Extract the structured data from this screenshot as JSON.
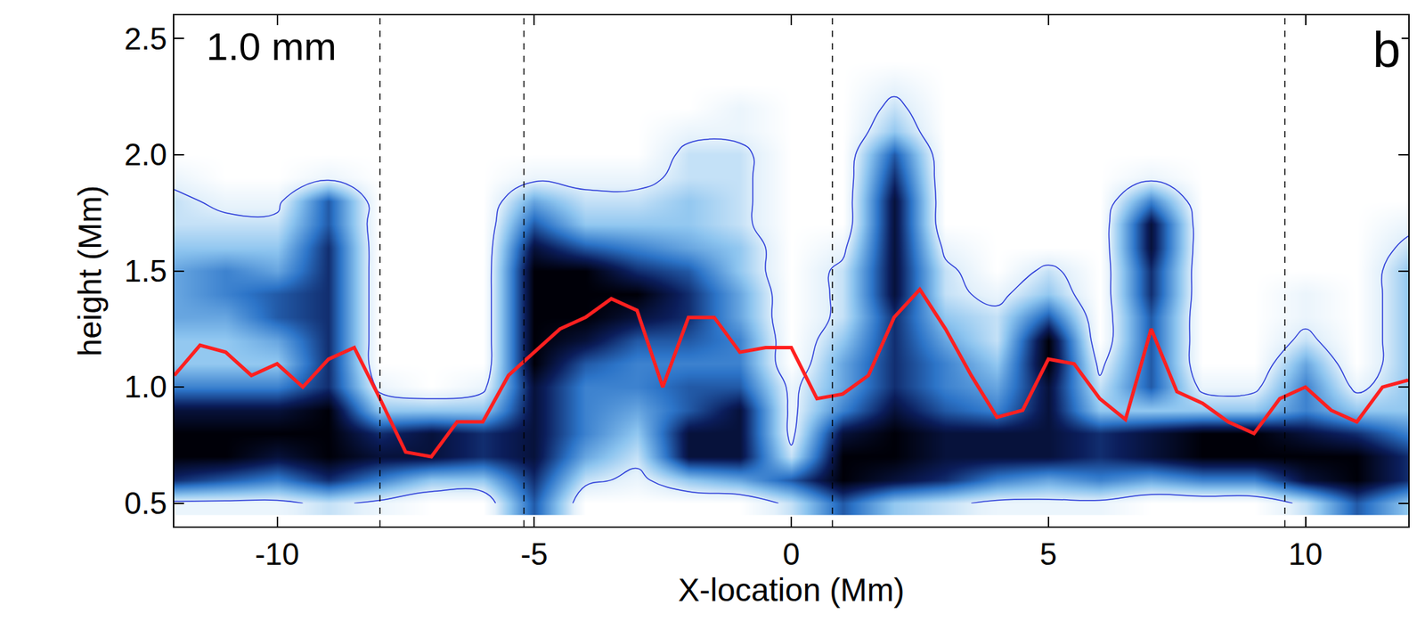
{
  "chart_data": {
    "type": "heatmap",
    "annotations": [
      "1.0 mm"
    ],
    "panel_label": "b",
    "x_label": "X-location (Mm)",
    "y_label": "height (Mm)",
    "xlim": [
      -12,
      12
    ],
    "ylim": [
      0.4,
      2.6
    ],
    "xticks": [
      -10,
      -5,
      0,
      5,
      10
    ],
    "yticks": [
      {
        "value": 0.5,
        "label": "0.5"
      },
      {
        "value": 1.0,
        "label": "1.0"
      },
      {
        "value": 1.5,
        "label": "1.5"
      },
      {
        "value": 2.0,
        "label": "2.0"
      },
      {
        "value": 2.5,
        "label": "2.5"
      }
    ],
    "grid": false,
    "cells": {
      "x": [
        -12,
        -11,
        -10,
        -9,
        -8,
        -7,
        -6,
        -5,
        -4,
        -3,
        -2,
        -1,
        0,
        1,
        2,
        3,
        4,
        5,
        6,
        7,
        8,
        9,
        10,
        11,
        12
      ],
      "y": [
        0.5,
        0.6,
        0.7,
        0.8,
        0.9,
        1.0,
        1.1,
        1.2,
        1.3,
        1.4,
        1.5,
        1.6,
        1.7,
        1.8,
        1.9,
        2.0,
        2.1,
        2.2,
        2.3,
        2.4,
        2.5
      ],
      "values": [
        [
          1,
          1,
          1,
          2,
          1,
          0,
          0,
          6,
          0,
          0,
          0,
          0,
          2,
          6,
          3,
          2,
          1,
          1,
          1,
          0,
          0,
          0,
          2,
          6,
          3
        ],
        [
          7,
          6,
          5,
          7,
          5,
          3,
          3,
          7,
          2,
          1,
          3,
          4,
          6,
          9,
          8,
          7,
          5,
          4,
          5,
          4,
          5,
          5,
          8,
          9,
          7
        ],
        [
          9,
          9,
          8,
          9,
          8,
          8,
          7,
          8,
          4,
          2,
          8,
          8,
          2,
          9,
          9,
          8,
          8,
          8,
          7,
          8,
          9,
          9,
          9,
          9,
          7
        ],
        [
          9,
          9,
          9,
          9,
          7,
          8,
          7,
          8,
          5,
          3,
          8,
          8,
          1,
          8,
          9,
          8,
          8,
          8,
          7,
          8,
          9,
          9,
          8,
          7,
          5
        ],
        [
          8,
          8,
          8,
          9,
          3,
          3,
          3,
          8,
          5,
          4,
          6,
          8,
          1,
          5,
          8,
          6,
          5,
          8,
          3,
          3,
          3,
          3,
          5,
          3,
          3
        ],
        [
          5,
          5,
          5,
          7,
          1,
          0,
          1,
          8,
          5,
          5,
          6,
          6,
          1,
          4,
          7,
          5,
          4,
          8,
          2,
          6,
          1,
          1,
          5,
          1,
          3
        ],
        [
          3,
          3,
          3,
          7,
          0,
          0,
          0,
          9,
          6,
          5,
          5,
          5,
          0,
          4,
          7,
          5,
          3,
          9,
          1,
          6,
          0,
          0,
          4,
          0,
          3
        ],
        [
          3,
          3,
          4,
          7,
          0,
          0,
          0,
          9,
          8,
          6,
          6,
          5,
          0,
          3,
          7,
          4,
          2,
          9,
          0,
          6,
          0,
          0,
          2,
          0,
          3
        ],
        [
          4,
          4,
          6,
          7,
          0,
          0,
          0,
          9,
          9,
          8,
          7,
          4,
          0,
          2,
          7,
          3,
          2,
          6,
          0,
          6,
          0,
          0,
          1,
          0,
          3
        ],
        [
          4,
          5,
          6,
          7,
          0,
          0,
          0,
          9,
          9,
          9,
          7,
          4,
          0,
          2,
          8,
          2,
          1,
          3,
          0,
          7,
          0,
          0,
          1,
          0,
          3
        ],
        [
          4,
          5,
          4,
          7,
          0,
          0,
          0,
          9,
          9,
          7,
          6,
          3,
          0,
          2,
          8,
          2,
          0,
          2,
          0,
          7,
          0,
          0,
          0,
          0,
          3
        ],
        [
          3,
          3,
          3,
          7,
          0,
          0,
          0,
          8,
          6,
          5,
          4,
          3,
          0,
          1,
          8,
          1,
          0,
          0,
          0,
          8,
          0,
          0,
          0,
          0,
          2
        ],
        [
          2,
          2,
          2,
          6,
          0,
          0,
          0,
          6,
          3,
          3,
          3,
          2,
          0,
          0,
          8,
          0,
          0,
          0,
          0,
          8,
          0,
          0,
          0,
          0,
          1
        ],
        [
          2,
          1,
          1,
          6,
          0,
          0,
          0,
          4,
          2,
          2,
          3,
          2,
          0,
          0,
          8,
          0,
          0,
          0,
          0,
          5,
          0,
          0,
          0,
          0,
          0
        ],
        [
          1,
          0,
          0,
          1,
          0,
          0,
          0,
          1,
          1,
          1,
          2,
          2,
          0,
          0,
          7,
          0,
          0,
          0,
          0,
          1,
          0,
          0,
          0,
          0,
          0
        ],
        [
          0,
          0,
          0,
          0,
          0,
          0,
          0,
          0,
          0,
          0,
          2,
          2,
          0,
          0,
          6,
          0,
          0,
          0,
          0,
          0,
          0,
          0,
          0,
          0,
          0
        ],
        [
          0,
          0,
          0,
          0,
          0,
          0,
          0,
          0,
          0,
          0,
          1,
          1,
          0,
          0,
          3,
          0,
          0,
          0,
          0,
          0,
          0,
          0,
          0,
          0,
          0
        ],
        [
          0,
          0,
          0,
          0,
          0,
          0,
          0,
          0,
          0,
          0,
          0,
          1,
          0,
          0,
          2,
          0,
          0,
          0,
          0,
          0,
          0,
          0,
          0,
          0,
          0
        ],
        [
          0,
          0,
          0,
          0,
          0,
          0,
          0,
          0,
          0,
          0,
          0,
          0,
          0,
          0,
          1,
          0,
          0,
          0,
          0,
          0,
          0,
          0,
          0,
          0,
          0
        ],
        [
          0,
          0,
          0,
          0,
          0,
          0,
          0,
          0,
          0,
          0,
          0,
          0,
          0,
          0,
          0,
          0,
          0,
          0,
          0,
          0,
          0,
          0,
          0,
          0,
          0
        ],
        [
          0,
          0,
          0,
          0,
          0,
          0,
          0,
          0,
          0,
          0,
          0,
          0,
          0,
          0,
          0,
          0,
          0,
          0,
          0,
          0,
          0,
          0,
          0,
          0,
          0
        ]
      ],
      "color_range": [
        0,
        9
      ],
      "contour_level": 1.5
    },
    "series": [
      {
        "type": "line",
        "color": "#ff2020",
        "x": [
          -12,
          -11.5,
          -11,
          -10.5,
          -10,
          -9.5,
          -9,
          -8.5,
          -8,
          -7.5,
          -7,
          -6.5,
          -6,
          -5.5,
          -5,
          -4.5,
          -4,
          -3.5,
          -3,
          -2.5,
          -2,
          -1.5,
          -1,
          -0.5,
          0,
          0.5,
          1,
          1.5,
          2,
          2.5,
          3,
          3.5,
          4,
          4.5,
          5,
          5.5,
          6,
          6.5,
          7,
          7.5,
          8,
          8.5,
          9,
          9.5,
          10,
          10.5,
          11,
          11.5,
          12
        ],
        "values": [
          1.05,
          1.18,
          1.15,
          1.05,
          1.1,
          1.0,
          1.12,
          1.17,
          0.95,
          0.72,
          0.7,
          0.85,
          0.85,
          1.05,
          1.15,
          1.25,
          1.3,
          1.38,
          1.33,
          1.0,
          1.3,
          1.3,
          1.15,
          1.17,
          1.17,
          0.95,
          0.97,
          1.05,
          1.3,
          1.42,
          1.25,
          1.05,
          0.87,
          0.9,
          1.12,
          1.1,
          0.95,
          0.86,
          1.25,
          0.98,
          0.93,
          0.85,
          0.8,
          0.95,
          1.0,
          0.9,
          0.85,
          1.0,
          1.03
        ]
      }
    ],
    "vlines": [
      -8.0,
      -5.2,
      0.8,
      9.6
    ]
  }
}
